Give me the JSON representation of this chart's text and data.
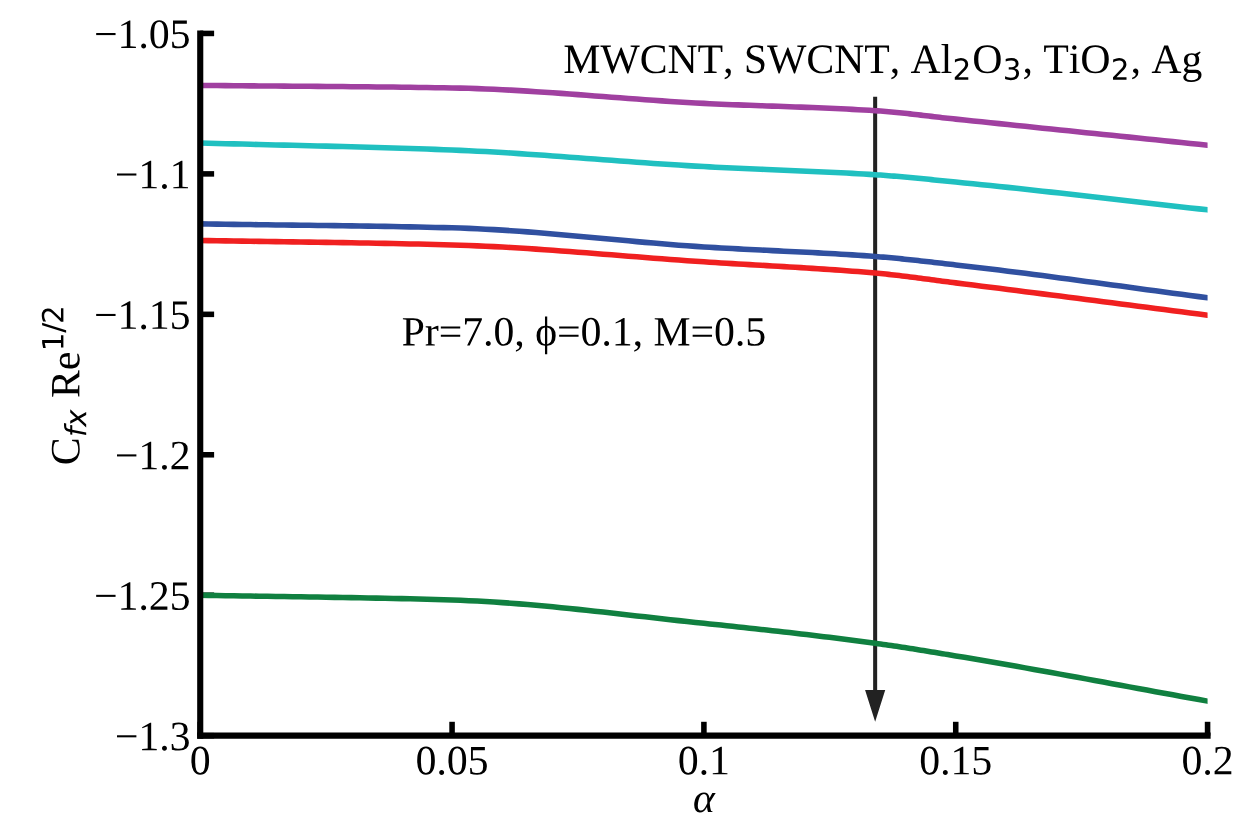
{
  "chart_data": {
    "type": "line",
    "xlabel": "α",
    "ylabel": "C$_{fx}$ Re$^{1/2}$",
    "xlim": [
      0,
      0.2
    ],
    "xticks": [
      0,
      0.05,
      0.1,
      0.15,
      0.2
    ],
    "ylim": [
      -1.3,
      -1.05
    ],
    "yticks": [
      -1.3,
      -1.25,
      -1.2,
      -1.15,
      -1.1,
      -1.05
    ],
    "grid": false,
    "line_style": "solid",
    "marker": "none",
    "x": [
      0,
      0.05,
      0.1,
      0.134,
      0.15,
      0.2
    ],
    "series": [
      {
        "color": "#a040a0",
        "values": [
          -1.0685,
          -1.0694,
          -1.0749,
          -1.0775,
          -1.0805,
          -1.0898
        ]
      },
      {
        "color": "#20c0c0",
        "values": [
          -1.089,
          -1.0915,
          -1.0974,
          -1.1003,
          -1.1029,
          -1.1128
        ]
      },
      {
        "color": "#3050a0",
        "values": [
          -1.1178,
          -1.1192,
          -1.126,
          -1.1294,
          -1.1324,
          -1.1441
        ]
      },
      {
        "color": "#f02020",
        "values": [
          -1.1237,
          -1.1253,
          -1.1313,
          -1.1353,
          -1.1388,
          -1.1503
        ]
      },
      {
        "color": "#108040",
        "values": [
          -1.25,
          -1.2517,
          -1.26,
          -1.2671,
          -1.2716,
          -1.2877
        ]
      }
    ],
    "annotations": [
      "MWCNT, SWCNT, Al$_{2}$O$_{3}$, TiO$_{2}$, Ag",
      "Pr=7.0, ϕ=0.1, M=0.5"
    ]
  }
}
